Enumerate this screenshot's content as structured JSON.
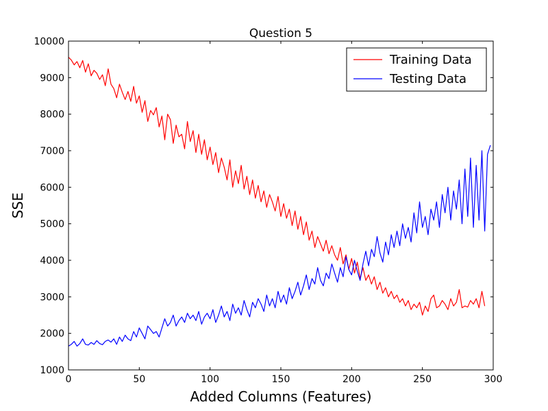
{
  "chart_data": {
    "type": "line",
    "title": "Question 5",
    "xlabel": "Added Columns (Features)",
    "ylabel": "SSE",
    "xlim": [
      0,
      300
    ],
    "ylim": [
      1000,
      10000
    ],
    "x_ticks": [
      0,
      50,
      100,
      150,
      200,
      250,
      300
    ],
    "y_ticks": [
      1000,
      2000,
      3000,
      4000,
      5000,
      6000,
      7000,
      8000,
      9000,
      10000
    ],
    "grid": false,
    "legend": {
      "placement": "top-right"
    },
    "x_step": 2,
    "series": [
      {
        "name": "Training Data",
        "color": "#ff0000",
        "values": [
          9560,
          9480,
          9350,
          9440,
          9270,
          9470,
          9150,
          9380,
          9050,
          9200,
          9120,
          8950,
          9080,
          8780,
          9240,
          8820,
          8700,
          8450,
          8820,
          8600,
          8400,
          8620,
          8350,
          8760,
          8300,
          8500,
          8050,
          8370,
          7800,
          8100,
          7980,
          8180,
          7650,
          7950,
          7300,
          8000,
          7850,
          7200,
          7700,
          7380,
          7450,
          7050,
          7800,
          7250,
          7550,
          6950,
          7450,
          6900,
          7300,
          6750,
          7100,
          6620,
          6950,
          6400,
          6800,
          6550,
          6200,
          6750,
          6000,
          6450,
          6100,
          6600,
          5950,
          6300,
          5800,
          6200,
          5700,
          6050,
          5600,
          5900,
          5450,
          5800,
          5600,
          5350,
          5750,
          5200,
          5550,
          5150,
          5400,
          4950,
          5350,
          4850,
          5200,
          4700,
          5050,
          4550,
          4800,
          4350,
          4650,
          4450,
          4250,
          4550,
          4180,
          4400,
          4150,
          4000,
          4350,
          3900,
          4150,
          3750,
          4050,
          3650,
          3950,
          3500,
          3800,
          3450,
          3600,
          3350,
          3550,
          3200,
          3400,
          3100,
          3250,
          3000,
          3150,
          2950,
          3050,
          2850,
          2950,
          2750,
          2900,
          2650,
          2800,
          2700,
          2850,
          2500,
          2750,
          2600,
          2950,
          3050,
          2700,
          2750,
          2900,
          2800,
          2650,
          2950,
          2750,
          2850,
          3200,
          2700,
          2750,
          2720,
          2900,
          2800,
          2950,
          2700,
          3150,
          2750
        ]
      },
      {
        "name": "Testing Data",
        "color": "#0000ff",
        "values": [
          1650,
          1700,
          1780,
          1650,
          1720,
          1850,
          1700,
          1680,
          1750,
          1700,
          1800,
          1720,
          1690,
          1780,
          1820,
          1760,
          1850,
          1700,
          1900,
          1780,
          1950,
          1850,
          1800,
          2050,
          1900,
          2150,
          2000,
          1850,
          2200,
          2100,
          2000,
          2050,
          1900,
          2150,
          2400,
          2200,
          2300,
          2500,
          2200,
          2350,
          2450,
          2300,
          2550,
          2400,
          2500,
          2350,
          2600,
          2250,
          2450,
          2550,
          2400,
          2650,
          2300,
          2500,
          2750,
          2450,
          2600,
          2350,
          2800,
          2550,
          2700,
          2500,
          2900,
          2650,
          2450,
          2850,
          2700,
          2950,
          2800,
          2600,
          3050,
          2750,
          2950,
          2700,
          3150,
          2850,
          3050,
          2800,
          3250,
          2950,
          3150,
          3400,
          3050,
          3300,
          3600,
          3200,
          3500,
          3350,
          3800,
          3450,
          3300,
          3650,
          3500,
          3900,
          3650,
          3400,
          3800,
          3550,
          4100,
          3750,
          3600,
          4000,
          3700,
          3450,
          3900,
          4250,
          3850,
          4300,
          4100,
          4650,
          4200,
          3950,
          4500,
          4150,
          4700,
          4350,
          4800,
          4400,
          5000,
          4600,
          4900,
          4500,
          5300,
          4750,
          5600,
          4900,
          5200,
          4700,
          5400,
          5100,
          5600,
          4900,
          5800,
          5300,
          6000,
          5100,
          5900,
          5400,
          6200,
          5000,
          6500,
          5200,
          6800,
          4900,
          6600,
          5100,
          7000,
          4800,
          6900,
          7150
        ]
      }
    ]
  }
}
